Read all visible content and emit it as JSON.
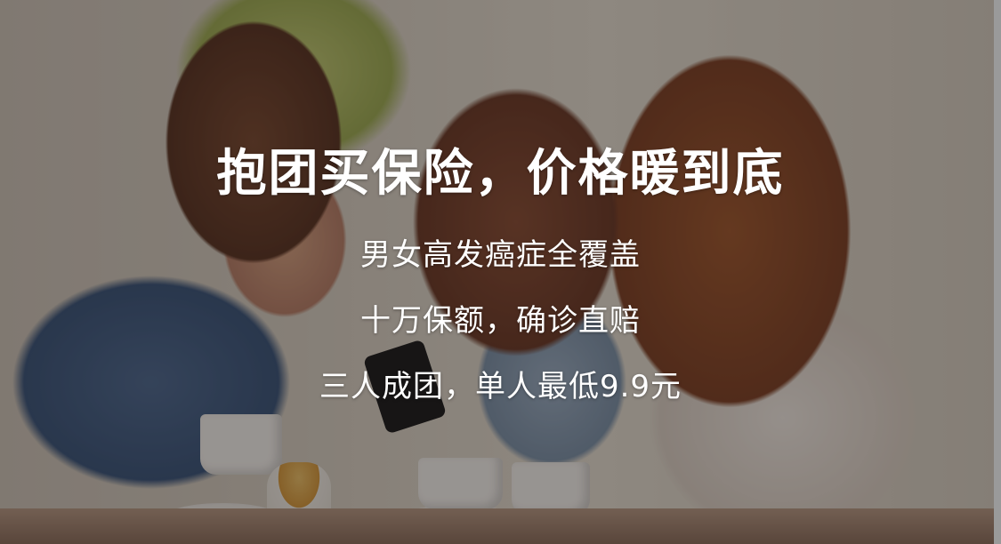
{
  "banner": {
    "headline": "抱团买保险，价格暖到底",
    "lines": [
      "男女高发癌症全覆盖",
      "十万保额，确诊直赔",
      "三人成团，单人最低9.9元"
    ]
  },
  "photo": {
    "description": "",
    "overlay_color": "#140e0c"
  }
}
